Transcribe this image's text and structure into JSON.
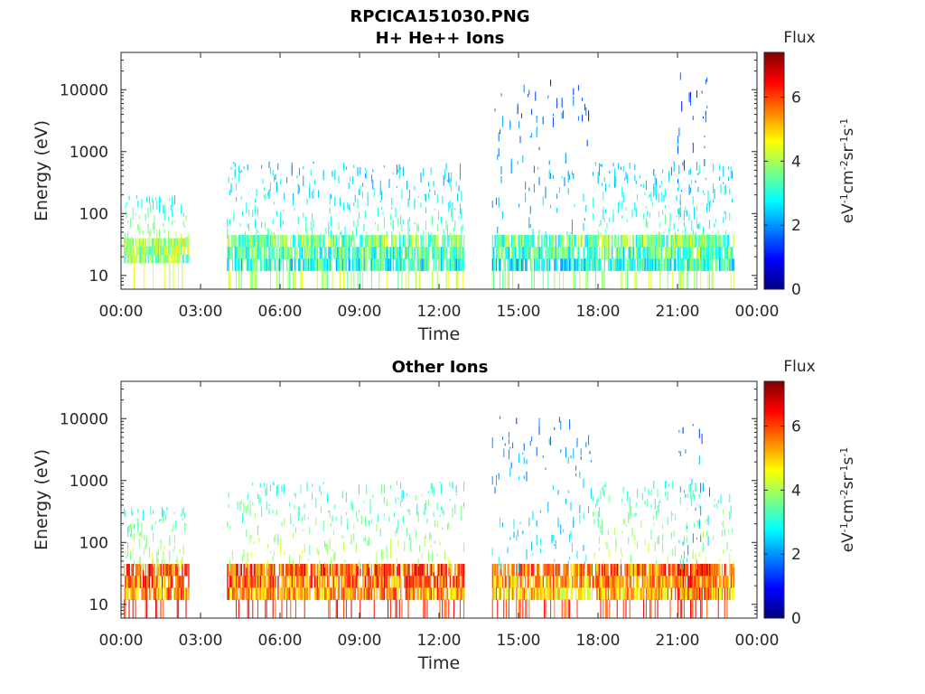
{
  "figure": {
    "title_line1": "RPCICA151030.PNG"
  },
  "colorbar": {
    "label": "Flux",
    "units": "eV-1cm-2sr-1s-1",
    "units_parts": [
      {
        "t": "eV",
        "sup": false
      },
      {
        "t": "-1",
        "sup": true
      },
      {
        "t": "cm",
        "sup": false
      },
      {
        "t": "-2",
        "sup": true
      },
      {
        "t": "sr",
        "sup": false
      },
      {
        "t": "-1",
        "sup": true
      },
      {
        "t": "s",
        "sup": false
      },
      {
        "t": "-1",
        "sup": true
      }
    ],
    "range": [
      0,
      7.4
    ],
    "ticks": [
      "0",
      "2",
      "4",
      "6"
    ],
    "colormap": "jet",
    "colors": [
      "#00007f",
      "#0000ff",
      "#007fff",
      "#00ffff",
      "#7fff7f",
      "#ffff00",
      "#ff7f00",
      "#ff0000",
      "#7f0000"
    ]
  },
  "chart_data": [
    {
      "type": "heatmap",
      "title": "H+ He++ Ions",
      "xlabel": "Time",
      "ylabel": "Energy (eV)",
      "x_ticks": [
        "00:00",
        "03:00",
        "06:00",
        "09:00",
        "12:00",
        "15:00",
        "18:00",
        "21:00",
        "00:00"
      ],
      "y_ticks": [
        "10",
        "100",
        "1000",
        "10000"
      ],
      "x_range_hours": [
        0,
        24
      ],
      "y_range_eV": [
        6,
        40000
      ],
      "y_scale": "log",
      "data_intervals": [
        {
          "start_hour": 0.1,
          "end_hour": 2.55,
          "core_eV": [
            16,
            40
          ],
          "core_flux": 4.2,
          "halo_max_eV": 200,
          "halo_flux": 2.8
        },
        {
          "start_hour": 4.0,
          "end_hour": 12.95,
          "core_eV": [
            12,
            45
          ],
          "core_flux": 3.6,
          "halo_max_eV": 700,
          "halo_flux": 2.2
        },
        {
          "start_hour": 14.0,
          "end_hour": 17.75,
          "core_eV": [
            12,
            45
          ],
          "core_flux": 3.4,
          "halo_max_eV": 15000,
          "halo_flux": 1.4
        },
        {
          "start_hour": 17.75,
          "end_hour": 23.1,
          "core_eV": [
            12,
            45
          ],
          "core_flux": 3.6,
          "halo_max_eV": 700,
          "halo_flux": 2.2
        },
        {
          "start_hour": 21.0,
          "end_hour": 22.2,
          "core_eV": [
            12,
            45
          ],
          "core_flux": 3.8,
          "halo_max_eV": 20000,
          "halo_flux": 1.3
        }
      ]
    },
    {
      "type": "heatmap",
      "title": "Other Ions",
      "xlabel": "Time",
      "ylabel": "Energy (eV)",
      "x_ticks": [
        "00:00",
        "03:00",
        "06:00",
        "09:00",
        "12:00",
        "15:00",
        "18:00",
        "21:00",
        "00:00"
      ],
      "y_ticks": [
        "10",
        "100",
        "1000",
        "10000"
      ],
      "x_range_hours": [
        0,
        24
      ],
      "y_range_eV": [
        6,
        40000
      ],
      "y_scale": "log",
      "data_intervals": [
        {
          "start_hour": 0.1,
          "end_hour": 2.55,
          "core_eV": [
            12,
            45
          ],
          "core_flux": 6.0,
          "halo_max_eV": 400,
          "halo_flux": 3.0
        },
        {
          "start_hour": 4.0,
          "end_hour": 12.95,
          "core_eV": [
            12,
            45
          ],
          "core_flux": 6.0,
          "halo_max_eV": 1000,
          "halo_flux": 3.0
        },
        {
          "start_hour": 14.0,
          "end_hour": 17.75,
          "core_eV": [
            12,
            45
          ],
          "core_flux": 5.6,
          "halo_max_eV": 11000,
          "halo_flux": 1.6
        },
        {
          "start_hour": 17.75,
          "end_hour": 23.1,
          "core_eV": [
            12,
            45
          ],
          "core_flux": 5.8,
          "halo_max_eV": 1000,
          "halo_flux": 3.0
        },
        {
          "start_hour": 21.0,
          "end_hour": 22.2,
          "core_eV": [
            12,
            45
          ],
          "core_flux": 6.2,
          "halo_max_eV": 11000,
          "halo_flux": 1.5
        }
      ]
    }
  ]
}
